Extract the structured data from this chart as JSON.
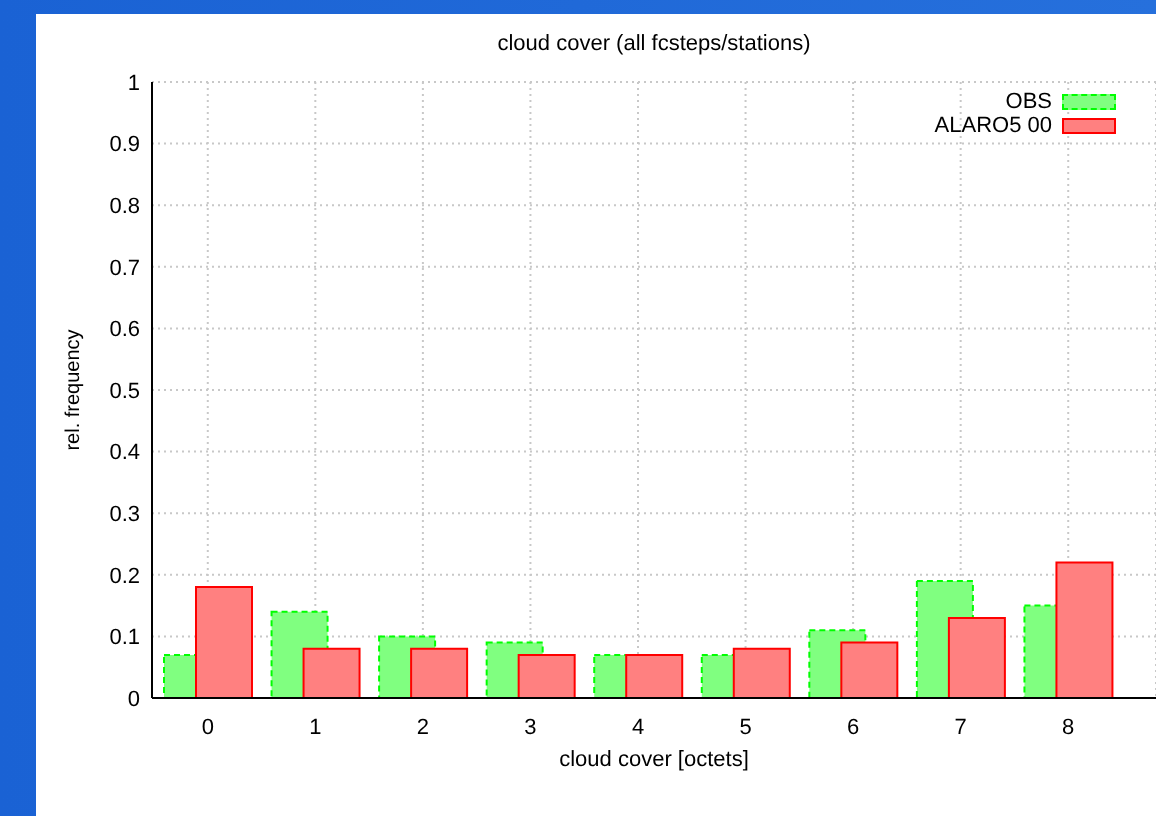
{
  "chart_data": {
    "type": "bar",
    "title": "cloud cover (all fcsteps/stations)",
    "xlabel": "cloud cover [octets]",
    "ylabel": "rel. frequency",
    "categories": [
      "0",
      "1",
      "2",
      "3",
      "4",
      "5",
      "6",
      "7",
      "8"
    ],
    "series": [
      {
        "name": "OBS",
        "color": "#80ff80",
        "line_style": "dashed",
        "values": [
          0.07,
          0.14,
          0.1,
          0.09,
          0.07,
          0.07,
          0.11,
          0.19,
          0.15
        ]
      },
      {
        "name": "ALARO5 00",
        "color": "#ff8080",
        "line_style": "solid",
        "values": [
          0.18,
          0.08,
          0.08,
          0.07,
          0.07,
          0.08,
          0.09,
          0.13,
          0.22
        ]
      }
    ],
    "ylim": [
      0,
      1
    ],
    "yticks": [
      0,
      0.1,
      0.2,
      0.3,
      0.4,
      0.5,
      0.6,
      0.7,
      0.8,
      0.9,
      1
    ],
    "grid": true,
    "legend": "top right"
  }
}
